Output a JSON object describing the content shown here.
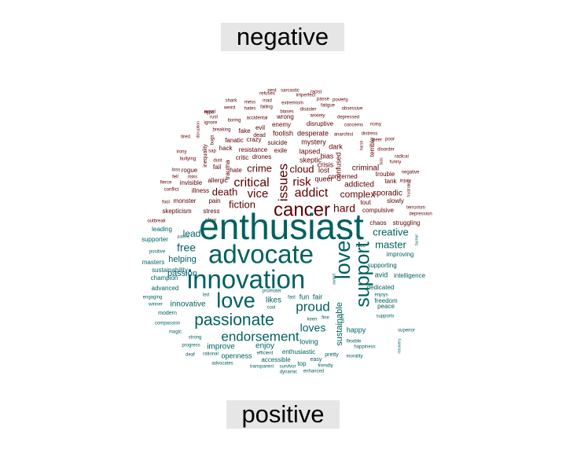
{
  "chart_data": {
    "type": "wordcloud",
    "title": "",
    "groups": [
      {
        "label": "negative",
        "color": "#5c0000"
      },
      {
        "label": "positive",
        "color": "#006060"
      }
    ],
    "words": [
      {
        "text": "cancer",
        "group": "negative",
        "size": 24
      },
      {
        "text": "issues",
        "group": "negative",
        "size": 17
      },
      {
        "text": "addict",
        "group": "negative",
        "size": 16
      },
      {
        "text": "critical",
        "group": "negative",
        "size": 16
      },
      {
        "text": "risk",
        "group": "negative",
        "size": 15
      },
      {
        "text": "vice",
        "group": "negative",
        "size": 15
      },
      {
        "text": "hard",
        "group": "negative",
        "size": 14
      },
      {
        "text": "fiction",
        "group": "negative",
        "size": 13
      },
      {
        "text": "death",
        "group": "negative",
        "size": 13
      },
      {
        "text": "crime",
        "group": "negative",
        "size": 13
      },
      {
        "text": "cloud",
        "group": "negative",
        "size": 13
      },
      {
        "text": "complex",
        "group": "negative",
        "size": 12
      },
      {
        "text": "addicted",
        "group": "negative",
        "size": 10
      },
      {
        "text": "criminal",
        "group": "negative",
        "size": 10
      },
      {
        "text": "sporadic",
        "group": "negative",
        "size": 10
      },
      {
        "text": "lost",
        "group": "negative",
        "size": 9
      },
      {
        "text": "queer",
        "group": "negative",
        "size": 9
      },
      {
        "text": "confused",
        "group": "negative",
        "size": 9
      },
      {
        "text": "terrible",
        "group": "negative",
        "size": 8
      },
      {
        "text": "skeptic",
        "group": "negative",
        "size": 9
      },
      {
        "text": "crisis",
        "group": "negative",
        "size": 9
      },
      {
        "text": "bias",
        "group": "negative",
        "size": 9
      },
      {
        "text": "dark",
        "group": "negative",
        "size": 9
      },
      {
        "text": "lapsed",
        "group": "negative",
        "size": 9
      },
      {
        "text": "mystery",
        "group": "negative",
        "size": 9
      },
      {
        "text": "desperate",
        "group": "negative",
        "size": 9
      },
      {
        "text": "disruptive",
        "group": "negative",
        "size": 8
      },
      {
        "text": "foolish",
        "group": "negative",
        "size": 9
      },
      {
        "text": "enemy",
        "group": "negative",
        "size": 8
      },
      {
        "text": "suicide",
        "group": "negative",
        "size": 8
      },
      {
        "text": "exile",
        "group": "negative",
        "size": 8
      },
      {
        "text": "evil",
        "group": "negative",
        "size": 8
      },
      {
        "text": "fake",
        "group": "negative",
        "size": 8
      },
      {
        "text": "dead",
        "group": "negative",
        "size": 7
      },
      {
        "text": "crazy",
        "group": "negative",
        "size": 8
      },
      {
        "text": "fanatic",
        "group": "negative",
        "size": 8
      },
      {
        "text": "resistance",
        "group": "negative",
        "size": 8
      },
      {
        "text": "drones",
        "group": "negative",
        "size": 8
      },
      {
        "text": "critic",
        "group": "negative",
        "size": 8
      },
      {
        "text": "hate",
        "group": "negative",
        "size": 8
      },
      {
        "text": "hack",
        "group": "negative",
        "size": 8
      },
      {
        "text": "trauma",
        "group": "negative",
        "size": 8
      },
      {
        "text": "fail",
        "group": "negative",
        "size": 8
      },
      {
        "text": "allergic",
        "group": "negative",
        "size": 8
      },
      {
        "text": "illness",
        "group": "negative",
        "size": 8
      },
      {
        "text": "invisible",
        "group": "negative",
        "size": 8
      },
      {
        "text": "rogue",
        "group": "negative",
        "size": 8
      },
      {
        "text": "pain",
        "group": "negative",
        "size": 8
      },
      {
        "text": "monster",
        "group": "negative",
        "size": 8
      },
      {
        "text": "stress",
        "group": "negative",
        "size": 8
      },
      {
        "text": "skepticism",
        "group": "negative",
        "size": 8
      },
      {
        "text": "chaos",
        "group": "negative",
        "size": 8
      },
      {
        "text": "struggling",
        "group": "negative",
        "size": 8
      },
      {
        "text": "compulsive",
        "group": "negative",
        "size": 8
      },
      {
        "text": "tout",
        "group": "negative",
        "size": 8
      },
      {
        "text": "slowly",
        "group": "negative",
        "size": 8
      },
      {
        "text": "tank",
        "group": "negative",
        "size": 8
      },
      {
        "text": "trouble",
        "group": "negative",
        "size": 8
      },
      {
        "text": "concerned",
        "group": "negative",
        "size": 8
      },
      {
        "text": "inequality",
        "group": "negative",
        "size": 7
      },
      {
        "text": "bugs",
        "group": "negative",
        "size": 6
      },
      {
        "text": "sap",
        "group": "negative",
        "size": 6
      },
      {
        "text": "breaking",
        "group": "negative",
        "size": 6
      },
      {
        "text": "dust",
        "group": "negative",
        "size": 6
      },
      {
        "text": "rust",
        "group": "negative",
        "size": 6
      },
      {
        "text": "hype",
        "group": "negative",
        "size": 6
      },
      {
        "text": "shark",
        "group": "negative",
        "size": 6
      },
      {
        "text": "weird",
        "group": "negative",
        "size": 6
      },
      {
        "text": "worst",
        "group": "negative",
        "size": 6
      },
      {
        "text": "ignore",
        "group": "negative",
        "size": 6
      },
      {
        "text": "boring",
        "group": "negative",
        "size": 6
      },
      {
        "text": "mess",
        "group": "negative",
        "size": 6
      },
      {
        "text": "hates",
        "group": "negative",
        "size": 6
      },
      {
        "text": "accidental",
        "group": "negative",
        "size": 6
      },
      {
        "text": "refuses",
        "group": "negative",
        "size": 6
      },
      {
        "text": "mad",
        "group": "negative",
        "size": 6
      },
      {
        "text": "failing",
        "group": "negative",
        "size": 6
      },
      {
        "text": "pest",
        "group": "negative",
        "size": 6
      },
      {
        "text": "sarcastic",
        "group": "negative",
        "size": 6
      },
      {
        "text": "imperfect",
        "group": "negative",
        "size": 6
      },
      {
        "text": "racist",
        "group": "negative",
        "size": 6
      },
      {
        "text": "extremism",
        "group": "negative",
        "size": 6
      },
      {
        "text": "passe",
        "group": "negative",
        "size": 6
      },
      {
        "text": "poverty",
        "group": "negative",
        "size": 6
      },
      {
        "text": "fatigue",
        "group": "negative",
        "size": 6
      },
      {
        "text": "obsessive",
        "group": "negative",
        "size": 6
      },
      {
        "text": "biases",
        "group": "negative",
        "size": 6
      },
      {
        "text": "disaster",
        "group": "negative",
        "size": 6
      },
      {
        "text": "wrong",
        "group": "negative",
        "size": 8
      },
      {
        "text": "anxiety",
        "group": "negative",
        "size": 6
      },
      {
        "text": "depressed",
        "group": "negative",
        "size": 6
      },
      {
        "text": "concerns",
        "group": "negative",
        "size": 6
      },
      {
        "text": "noisy",
        "group": "negative",
        "size": 6
      },
      {
        "text": "anarchist",
        "group": "negative",
        "size": 6
      },
      {
        "text": "distress",
        "group": "negative",
        "size": 6
      },
      {
        "text": "peer",
        "group": "negative",
        "size": 6
      },
      {
        "text": "poor",
        "group": "negative",
        "size": 6
      },
      {
        "text": "disorder",
        "group": "negative",
        "size": 6
      },
      {
        "text": "radical",
        "group": "negative",
        "size": 6
      },
      {
        "text": "funny",
        "group": "negative",
        "size": 6
      },
      {
        "text": "negative",
        "group": "negative",
        "size": 6
      },
      {
        "text": "injury",
        "group": "negative",
        "size": 6
      },
      {
        "text": "terrorism",
        "group": "negative",
        "size": 6
      },
      {
        "text": "depression",
        "group": "negative",
        "size": 6
      },
      {
        "text": "frustrated",
        "group": "negative",
        "size": 5
      },
      {
        "text": "harsh",
        "group": "negative",
        "size": 5
      },
      {
        "text": "bias",
        "group": "negative",
        "size": 5
      },
      {
        "text": "disruption",
        "group": "negative",
        "size": 5
      },
      {
        "text": "tired",
        "group": "negative",
        "size": 6
      },
      {
        "text": "irony",
        "group": "negative",
        "size": 6
      },
      {
        "text": "bullying",
        "group": "negative",
        "size": 6
      },
      {
        "text": "loss",
        "group": "negative",
        "size": 6
      },
      {
        "text": "fell",
        "group": "negative",
        "size": 6
      },
      {
        "text": "risks",
        "group": "negative",
        "size": 6
      },
      {
        "text": "fierce",
        "group": "negative",
        "size": 6
      },
      {
        "text": "conflict",
        "group": "negative",
        "size": 6
      },
      {
        "text": "fool",
        "group": "negative",
        "size": 6
      },
      {
        "text": "outbreak",
        "group": "negative",
        "size": 6
      },
      {
        "text": "slow",
        "group": "negative",
        "size": 7
      },
      {
        "text": "enthusiast",
        "group": "positive",
        "size": 46
      },
      {
        "text": "innovation",
        "group": "positive",
        "size": 33
      },
      {
        "text": "advocate",
        "group": "positive",
        "size": 33
      },
      {
        "text": "love",
        "group": "positive",
        "size": 27
      },
      {
        "text": "lover",
        "group": "positive",
        "size": 27
      },
      {
        "text": "support",
        "group": "positive",
        "size": 25
      },
      {
        "text": "passionate",
        "group": "positive",
        "size": 21
      },
      {
        "text": "endorsement",
        "group": "positive",
        "size": 17
      },
      {
        "text": "proud",
        "group": "positive",
        "size": 17
      },
      {
        "text": "loves",
        "group": "positive",
        "size": 14
      },
      {
        "text": "free",
        "group": "positive",
        "size": 14
      },
      {
        "text": "master",
        "group": "positive",
        "size": 13
      },
      {
        "text": "creative",
        "group": "positive",
        "size": 13
      },
      {
        "text": "lead",
        "group": "positive",
        "size": 12
      },
      {
        "text": "sustainable",
        "group": "positive",
        "size": 11
      },
      {
        "text": "helping",
        "group": "positive",
        "size": 11
      },
      {
        "text": "passion",
        "group": "positive",
        "size": 11
      },
      {
        "text": "innovative",
        "group": "positive",
        "size": 10
      },
      {
        "text": "likes",
        "group": "positive",
        "size": 10
      },
      {
        "text": "improve",
        "group": "positive",
        "size": 10
      },
      {
        "text": "enjoy",
        "group": "positive",
        "size": 10
      },
      {
        "text": "loving",
        "group": "positive",
        "size": 9
      },
      {
        "text": "openness",
        "group": "positive",
        "size": 9
      },
      {
        "text": "fun",
        "group": "positive",
        "size": 9
      },
      {
        "text": "fair",
        "group": "positive",
        "size": 9
      },
      {
        "text": "happy",
        "group": "positive",
        "size": 9
      },
      {
        "text": "avid",
        "group": "positive",
        "size": 9
      },
      {
        "text": "leading",
        "group": "positive",
        "size": 8
      },
      {
        "text": "supporter",
        "group": "positive",
        "size": 8
      },
      {
        "text": "masters",
        "group": "positive",
        "size": 8
      },
      {
        "text": "sustainability",
        "group": "positive",
        "size": 8
      },
      {
        "text": "champion",
        "group": "positive",
        "size": 8
      },
      {
        "text": "advanced",
        "group": "positive",
        "size": 8
      },
      {
        "text": "modern",
        "group": "positive",
        "size": 7
      },
      {
        "text": "improving",
        "group": "positive",
        "size": 8
      },
      {
        "text": "supporting",
        "group": "positive",
        "size": 8
      },
      {
        "text": "intelligence",
        "group": "positive",
        "size": 8
      },
      {
        "text": "dedicated",
        "group": "positive",
        "size": 8
      },
      {
        "text": "freedom",
        "group": "positive",
        "size": 8
      },
      {
        "text": "peace",
        "group": "positive",
        "size": 8
      },
      {
        "text": "accessible",
        "group": "positive",
        "size": 8
      },
      {
        "text": "enthusiastic",
        "group": "positive",
        "size": 8
      },
      {
        "text": "easy",
        "group": "positive",
        "size": 7
      },
      {
        "text": "top",
        "group": "positive",
        "size": 8
      },
      {
        "text": "pretty",
        "group": "positive",
        "size": 7
      },
      {
        "text": "positive",
        "group": "positive",
        "size": 6
      },
      {
        "text": "compassion",
        "group": "positive",
        "size": 6
      },
      {
        "text": "magic",
        "group": "positive",
        "size": 6
      },
      {
        "text": "strong",
        "group": "positive",
        "size": 6
      },
      {
        "text": "progress",
        "group": "positive",
        "size": 6
      },
      {
        "text": "rational",
        "group": "positive",
        "size": 6
      },
      {
        "text": "advocates",
        "group": "positive",
        "size": 6
      },
      {
        "text": "transparent",
        "group": "positive",
        "size": 6
      },
      {
        "text": "survivor",
        "group": "positive",
        "size": 6
      },
      {
        "text": "dynamic",
        "group": "positive",
        "size": 6
      },
      {
        "text": "enhanced",
        "group": "positive",
        "size": 6
      },
      {
        "text": "friendly",
        "group": "positive",
        "size": 6
      },
      {
        "text": "morality",
        "group": "positive",
        "size": 6
      },
      {
        "text": "happiness",
        "group": "positive",
        "size": 6
      },
      {
        "text": "flexible",
        "group": "positive",
        "size": 6
      },
      {
        "text": "supports",
        "group": "positive",
        "size": 6
      },
      {
        "text": "superior",
        "group": "positive",
        "size": 6
      },
      {
        "text": "recovery",
        "group": "positive",
        "size": 5
      },
      {
        "text": "enjoys",
        "group": "positive",
        "size": 6
      },
      {
        "text": "nice",
        "group": "positive",
        "size": 7
      },
      {
        "text": "patient",
        "group": "positive",
        "size": 5
      },
      {
        "text": "engaging",
        "group": "positive",
        "size": 6
      },
      {
        "text": "winner",
        "group": "positive",
        "size": 6
      },
      {
        "text": "led",
        "group": "positive",
        "size": 6
      },
      {
        "text": "cool",
        "group": "positive",
        "size": 6
      },
      {
        "text": "promoter",
        "group": "positive",
        "size": 6
      },
      {
        "text": "fast",
        "group": "positive",
        "size": 6
      },
      {
        "text": "efficient",
        "group": "positive",
        "size": 6
      },
      {
        "text": "keen",
        "group": "positive",
        "size": 6
      },
      {
        "text": "fine",
        "group": "positive",
        "size": 6
      },
      {
        "text": "award",
        "group": "positive",
        "size": 5
      },
      {
        "text": "talent",
        "group": "positive",
        "size": 5
      },
      {
        "text": "humor",
        "group": "positive",
        "size": 5
      },
      {
        "text": "deaf",
        "group": "positive",
        "size": 6
      }
    ]
  }
}
